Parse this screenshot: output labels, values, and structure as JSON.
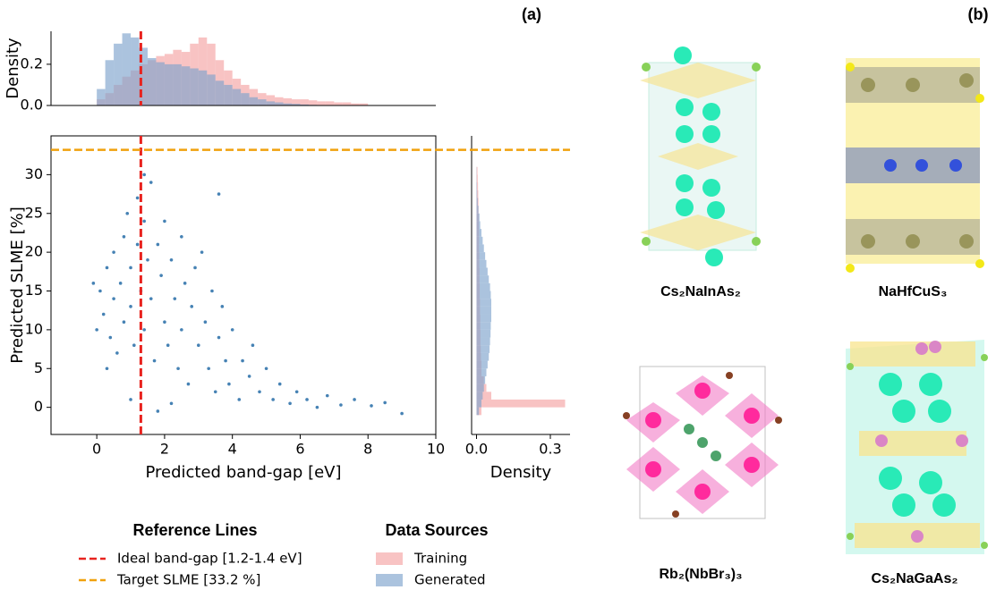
{
  "panel_labels": [
    "(a)",
    "(b)"
  ],
  "chart_data": [
    {
      "type": "scatter",
      "xlabel": "Predicted band-gap [eV]",
      "ylabel": "Predicted SLME [%]",
      "color": "#4682b4",
      "xlim": [
        -1.35,
        10
      ],
      "ylim": [
        -3.5,
        35
      ],
      "xticks": [
        0,
        2,
        4,
        6,
        8,
        10
      ],
      "yticks": [
        0,
        5,
        10,
        15,
        20,
        25,
        30
      ],
      "x": [
        0.1,
        0.2,
        0.3,
        0.4,
        0.5,
        0.5,
        0.6,
        0.7,
        0.8,
        0.8,
        0.9,
        1.0,
        1.0,
        1.1,
        1.2,
        1.2,
        1.3,
        1.4,
        1.4,
        1.5,
        1.6,
        1.6,
        1.7,
        1.8,
        1.9,
        2.0,
        2.0,
        2.1,
        2.2,
        2.3,
        2.4,
        2.5,
        2.5,
        2.6,
        2.7,
        2.8,
        2.9,
        3.0,
        3.1,
        3.2,
        3.3,
        3.4,
        3.5,
        3.6,
        3.7,
        3.8,
        3.9,
        4.0,
        4.2,
        4.3,
        4.5,
        4.6,
        4.8,
        5.0,
        5.2,
        5.4,
        5.7,
        5.9,
        6.2,
        6.5,
        6.8,
        7.2,
        7.6,
        8.1,
        8.5,
        9.0,
        -0.1,
        0.0,
        3.6,
        1.4,
        0.3,
        1.0,
        2.2,
        1.8
      ],
      "y": [
        15,
        12,
        18,
        9,
        20,
        14,
        7,
        16,
        22,
        11,
        25,
        18,
        13,
        8,
        21,
        27,
        15,
        24,
        10,
        19,
        29,
        14,
        6,
        21,
        17,
        11,
        24,
        8,
        19,
        14,
        5,
        22,
        10,
        16,
        3,
        13,
        18,
        8,
        20,
        11,
        5,
        15,
        2,
        9,
        13,
        6,
        3,
        10,
        1,
        6,
        4,
        8,
        2,
        5,
        1,
        3,
        0.5,
        2,
        1,
        0,
        1.5,
        0.3,
        1,
        0.2,
        0.6,
        -0.8,
        16,
        10,
        27.5,
        30,
        5,
        1,
        0.5,
        -0.5
      ],
      "reference_lines": [
        {
          "name": "Ideal band-gap [1.2-1.4 eV]",
          "axis": "x",
          "value": 1.3,
          "color": "#e8231f"
        },
        {
          "name": "Target SLME [33.2 %]",
          "axis": "y",
          "value": 33.2,
          "color": "#f0a10c"
        }
      ]
    },
    {
      "type": "histogram",
      "orientation": "vertical",
      "ylabel": "Density",
      "xlim": [
        -1.35,
        10
      ],
      "ylim": [
        0,
        0.36
      ],
      "yticks": [
        {
          "value": 0,
          "label": "0.0"
        },
        0.2
      ],
      "bins": [
        0,
        0.25,
        0.5,
        0.75,
        1,
        1.25,
        1.5,
        1.75,
        2,
        2.25,
        2.5,
        2.75,
        3,
        3.25,
        3.5,
        3.75,
        4,
        4.25,
        4.5,
        4.75,
        5,
        5.25,
        5.5,
        5.75,
        6,
        6.25,
        6.5,
        6.75,
        7,
        7.25,
        7.5,
        7.75,
        8
      ],
      "series": [
        {
          "name": "Training",
          "color": "#f4a3a3",
          "values": [
            0.03,
            0.06,
            0.1,
            0.14,
            0.17,
            0.2,
            0.22,
            0.24,
            0.25,
            0.27,
            0.26,
            0.3,
            0.33,
            0.3,
            0.22,
            0.17,
            0.13,
            0.1,
            0.08,
            0.06,
            0.05,
            0.04,
            0.035,
            0.03,
            0.03,
            0.025,
            0.02,
            0.02,
            0.015,
            0.015,
            0.01,
            0.01
          ]
        },
        {
          "name": "Generated",
          "color": "#7ea3cc",
          "values": [
            0.08,
            0.22,
            0.3,
            0.35,
            0.33,
            0.28,
            0.23,
            0.21,
            0.2,
            0.2,
            0.19,
            0.18,
            0.17,
            0.15,
            0.12,
            0.1,
            0.08,
            0.06,
            0.04,
            0.03,
            0.02,
            0.015,
            0.01,
            0.008,
            0.005,
            0.003,
            0.002,
            0.001,
            0,
            0,
            0,
            0
          ]
        }
      ]
    },
    {
      "type": "histogram",
      "orientation": "horizontal",
      "xlabel": "Density",
      "xlim": [
        -0.02,
        0.38
      ],
      "ylim": [
        -3.5,
        35
      ],
      "xticks": [
        {
          "value": 0,
          "label": "0.0"
        },
        0.3
      ],
      "bins": [
        -1,
        0,
        1,
        2,
        3,
        4,
        5,
        6,
        7,
        8,
        9,
        10,
        11,
        12,
        13,
        14,
        15,
        16,
        17,
        18,
        19,
        20,
        21,
        22,
        23,
        24,
        25,
        26,
        27,
        28,
        29,
        30,
        31
      ],
      "series": [
        {
          "name": "Training",
          "color": "#f4a3a3",
          "values": [
            0.02,
            0.36,
            0.06,
            0.04,
            0.03,
            0.02,
            0.02,
            0.018,
            0.017,
            0.016,
            0.016,
            0.015,
            0.015,
            0.014,
            0.014,
            0.013,
            0.013,
            0.012,
            0.012,
            0.011,
            0.011,
            0.01,
            0.01,
            0.01,
            0.009,
            0.009,
            0.008,
            0.008,
            0.007,
            0.006,
            0.005,
            0.004
          ]
        },
        {
          "name": "Generated",
          "color": "#7ea3cc",
          "values": [
            0.01,
            0.02,
            0.025,
            0.03,
            0.035,
            0.04,
            0.045,
            0.05,
            0.053,
            0.055,
            0.057,
            0.058,
            0.06,
            0.06,
            0.06,
            0.058,
            0.055,
            0.05,
            0.045,
            0.04,
            0.035,
            0.03,
            0.025,
            0.02,
            0.015,
            0.012,
            0.008,
            0.005,
            0.003,
            0.002,
            0.001,
            0.001
          ]
        }
      ]
    }
  ],
  "legend_titles": [
    "Reference Lines",
    "Data Sources"
  ],
  "structures": [
    "Cs₂NaInAs₂",
    "NaHfCuS₃",
    "Rb₂(NbBr₃)₃",
    "Cs₂NaGaAs₂"
  ]
}
